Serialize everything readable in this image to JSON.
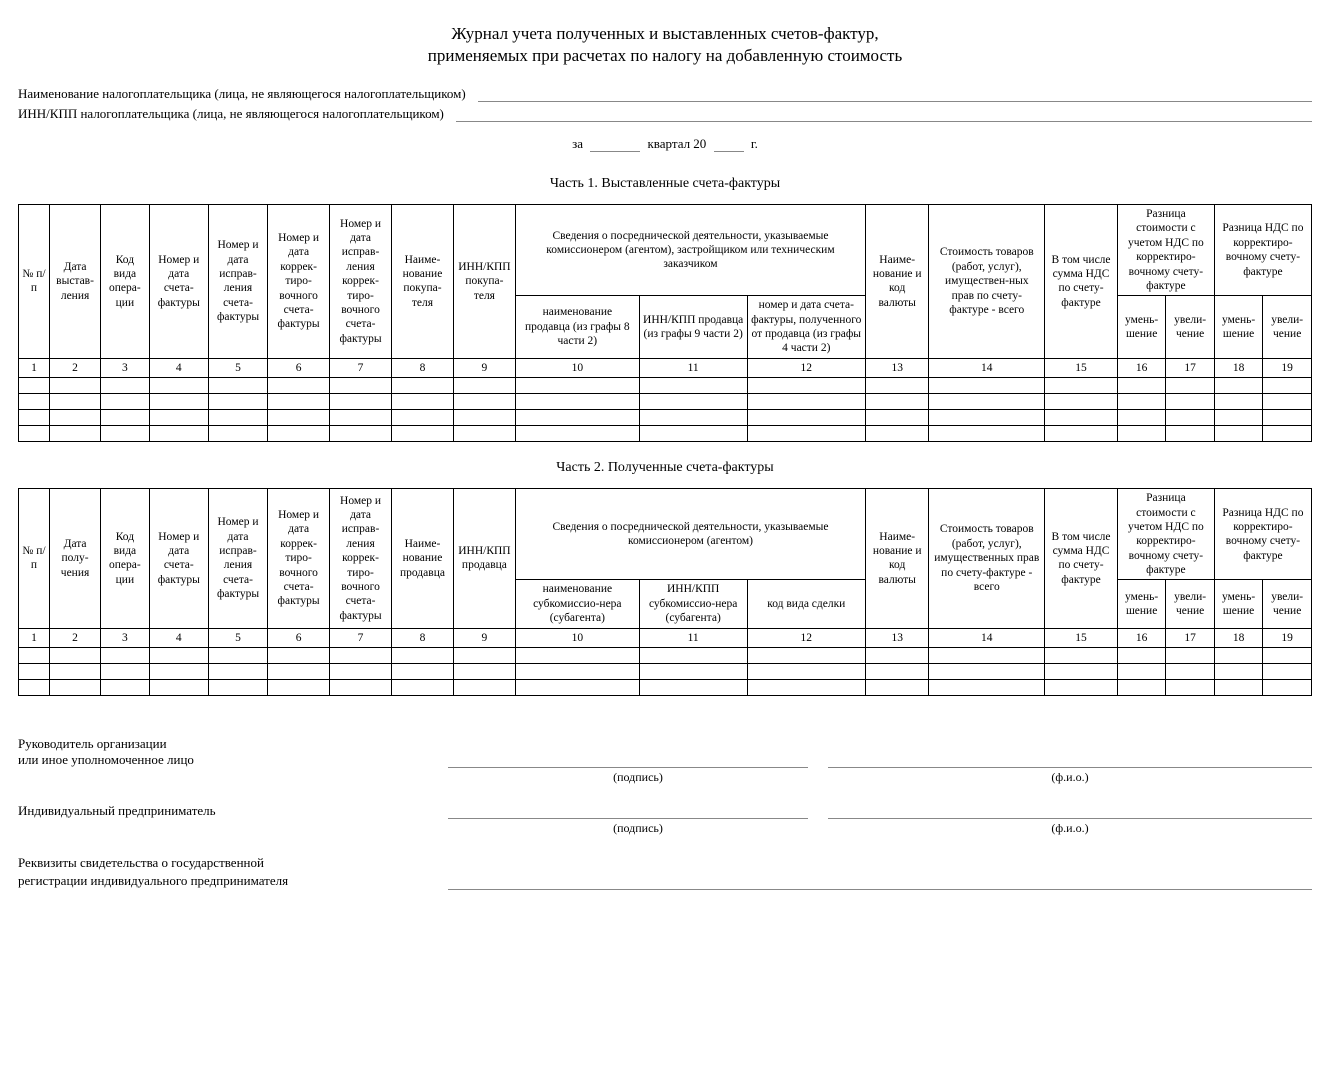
{
  "title_line1": "Журнал учета полученных и выставленных счетов-фактур,",
  "title_line2": "применяемых при расчетах по налогу на добавленную стоимость",
  "field_taxpayer_name": "Наименование налогоплательщика (лица, не являющегося налогоплательщиком)",
  "field_taxpayer_inn": "ИНН/КПП налогоплательщика (лица, не являющегося налогоплательщиком)",
  "period_za": "за",
  "period_kvartal": "квартал 20",
  "period_g": "г.",
  "part1_title": "Часть 1. Выставленные счета-фактуры",
  "part2_title": "Часть 2. Полученные счета-фактуры",
  "headers1": {
    "c1": "№ п/п",
    "c2": "Дата выстав-ления",
    "c3": "Код вида опера-ции",
    "c4": "Номер и дата счета-фактуры",
    "c5": "Номер и дата исправ-ления счета-фактуры",
    "c6": "Номер и дата коррек-тиро-вочного счета-фактуры",
    "c7": "Номер и дата исправ-ления коррек-тиро-вочного счета-фактуры",
    "c8": "Наиме-нование покупа-теля",
    "c9": "ИНН/КПП покупа-теля",
    "c10_12": "Сведения о посреднической деятельности, указываемые комиссионером (агентом), застройщиком или техническим заказчиком",
    "c10": "наименование продавца (из графы 8 части 2)",
    "c11": "ИНН/КПП продавца (из графы 9 части 2)",
    "c12": "номер и дата счета-фактуры, полученного от продавца (из графы 4 части 2)",
    "c13": "Наиме-нование и код валюты",
    "c14": "Стоимость товаров (работ, услуг), имуществен-ных прав по счету-фактуре - всего",
    "c15": "В том числе сумма НДС по счету-фактуре",
    "c16_17": "Разница стоимости с учетом НДС по корректиро-вочному счету-фактуре",
    "c18_19": "Разница НДС по корректиро-вочному счету-фактуре",
    "umen": "умень-шение",
    "uvel": "увели-чение"
  },
  "headers2": {
    "c1": "№ п/п",
    "c2": "Дата полу-чения",
    "c3": "Код вида опера-ции",
    "c4": "Номер и дата счета-фактуры",
    "c5": "Номер и дата исправ-ления счета-фактуры",
    "c6": "Номер и дата коррек-тиро-вочного счета-фактуры",
    "c7": "Номер и дата исправ-ления коррек-тиро-вочного счета-фактуры",
    "c8": "Наиме-нование продавца",
    "c9": "ИНН/КПП продавца",
    "c10_12": "Сведения о посреднической деятельности, указываемые комиссионером (агентом)",
    "c10": "наименование субкомиссио-нера (субагента)",
    "c11": "ИНН/КПП субкомиссио-нера (субагента)",
    "c12": "код вида сделки",
    "c13": "Наиме-нование и код валюты",
    "c14": "Стоимость товаров (работ, услуг), имущественных прав по счету-фактуре - всего",
    "c15": "В том числе сумма НДС по счету-фактуре",
    "c16_17": "Разница стоимости с учетом НДС по корректиро-вочному счету-фактуре",
    "c18_19": "Разница НДС по корректиро-вочному счету-фактуре",
    "umen": "умень-шение",
    "uvel": "увели-чение"
  },
  "colnums": [
    "1",
    "2",
    "3",
    "4",
    "5",
    "6",
    "7",
    "8",
    "9",
    "10",
    "11",
    "12",
    "13",
    "14",
    "15",
    "16",
    "17",
    "18",
    "19"
  ],
  "sig": {
    "head1": "Руководитель организации",
    "head2": "или иное уполномоченное лицо",
    "ip": "Индивидуальный предприниматель",
    "podpis": "(подпись)",
    "fio": "(ф.и.о.)",
    "reg1": "Реквизиты свидетельства о государственной",
    "reg2": "регистрации индивидуального предпринимателя"
  },
  "col_widths_pct": [
    2.3,
    3.8,
    3.6,
    4.4,
    4.4,
    4.6,
    4.6,
    4.6,
    4.6,
    9.2,
    8.0,
    8.8,
    4.7,
    8.6,
    5.4,
    3.6,
    3.6,
    3.6,
    3.6
  ]
}
